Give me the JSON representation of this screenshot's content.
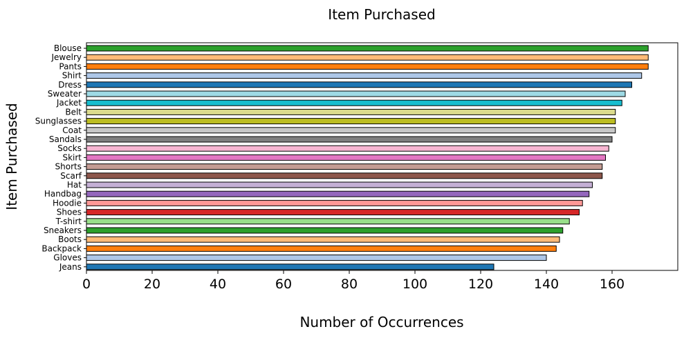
{
  "chart_data": {
    "type": "bar",
    "orientation": "horizontal",
    "title": "Item Purchased",
    "xlabel": "Number of Occurrences",
    "ylabel": "Item Purchased",
    "xlim": [
      0,
      180
    ],
    "xticks": [
      "0",
      "20",
      "40",
      "60",
      "80",
      "100",
      "120",
      "140",
      "160"
    ],
    "grid": false,
    "legend": "none",
    "categories": [
      "Blouse",
      "Jewelry",
      "Pants",
      "Shirt",
      "Dress",
      "Sweater",
      "Jacket",
      "Belt",
      "Sunglasses",
      "Coat",
      "Sandals",
      "Socks",
      "Skirt",
      "Shorts",
      "Scarf",
      "Hat",
      "Handbag",
      "Hoodie",
      "Shoes",
      "T-shirt",
      "Sneakers",
      "Boots",
      "Backpack",
      "Gloves",
      "Jeans"
    ],
    "values": [
      171,
      171,
      171,
      169,
      166,
      164,
      163,
      161,
      161,
      161,
      160,
      159,
      158,
      157,
      157,
      154,
      153,
      151,
      150,
      147,
      145,
      144,
      143,
      140,
      124
    ],
    "colors": [
      "#2ca02c",
      "#ffbb78",
      "#ff7f0e",
      "#aec7e8",
      "#1f77b4",
      "#9edae5",
      "#17becf",
      "#dbdb8d",
      "#bcbd22",
      "#c7c7c7",
      "#7f7f7f",
      "#f7b6d2",
      "#e377c2",
      "#c49c94",
      "#8c564b",
      "#c5b0d5",
      "#9467bd",
      "#ff9896",
      "#d62728",
      "#98df8a",
      "#2ca02c",
      "#ffbb78",
      "#ff7f0e",
      "#aec7e8",
      "#1f77b4"
    ],
    "edge_color": "#000000"
  }
}
